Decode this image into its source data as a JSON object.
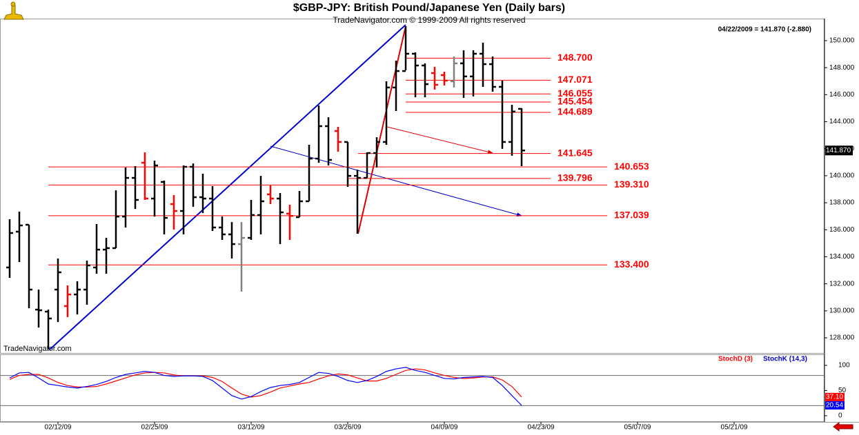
{
  "header_quote": "04/22/2009 = 141.870 (-2.880)",
  "watermark": "TradeNavigator.com",
  "chart_data": [
    {
      "type": "ohlc",
      "title": "$GBP-JPY:  British Pound/Japanese Yen  (Daily bars)",
      "subtitle": "TradeNavigator.com © 1999-2009 All rights reserved",
      "x": [
        0,
        1,
        2,
        3,
        4,
        5,
        6,
        7,
        8,
        9,
        10,
        11,
        12,
        13,
        14,
        15,
        16,
        17,
        18,
        19,
        20,
        21,
        22,
        23,
        24,
        25,
        26,
        27,
        28,
        29,
        30,
        31,
        32,
        33,
        34,
        35,
        36,
        37,
        38,
        39,
        40,
        41,
        42,
        43,
        44,
        45,
        46,
        47,
        48,
        49,
        50,
        51,
        52,
        53
      ],
      "open": [
        133.21,
        135.86,
        136.37,
        130.09,
        129.94,
        131.57,
        130.35,
        131.21,
        131.57,
        133.21,
        134.53,
        134.64,
        136.98,
        139.84,
        140.96,
        138.31,
        139.54,
        137.9,
        137.39,
        140.66,
        138.41,
        138.31,
        136.17,
        135.66,
        134.94,
        135.4,
        137.09,
        138.62,
        138.31,
        137.19,
        136.93,
        138.11,
        141.27,
        143.67,
        143.31,
        142.5,
        139.99,
        139.84,
        141.68,
        142.5,
        146.53,
        147.75,
        149.03,
        148.16,
        147.6,
        147.45,
        146.99,
        148.32,
        147.35,
        149.03,
        148.26,
        146.58,
        142.5,
        144.95
      ],
      "high": [
        136.78,
        137.34,
        136.37,
        131.57,
        130.09,
        133.87,
        131.88,
        132.19,
        133.72,
        136.42,
        135.4,
        138.92,
        140.61,
        140.71,
        141.73,
        141.12,
        139.64,
        138.57,
        140.76,
        140.91,
        140.15,
        139.23,
        136.98,
        136.57,
        136.57,
        138.21,
        139.99,
        139.33,
        138.72,
        137.85,
        138.87,
        142.29,
        145.2,
        144.33,
        143.62,
        142.5,
        140.45,
        141.73,
        142.85,
        146.99,
        148.52,
        151.07,
        149.13,
        148.32,
        148.06,
        147.7,
        148.83,
        149.29,
        149.29,
        149.85,
        148.83,
        147.04,
        145.25,
        145.0
      ],
      "low": [
        132.44,
        133.61,
        130.19,
        128.76,
        127.13,
        129.17,
        129.53,
        129.73,
        130.45,
        132.75,
        132.75,
        134.64,
        136.17,
        137.54,
        138.21,
        136.98,
        135.66,
        136.01,
        135.66,
        137.7,
        137.24,
        135.91,
        135.25,
        133.87,
        131.42,
        135.25,
        135.66,
        137.9,
        134.94,
        135.25,
        136.93,
        138.11,
        140.96,
        140.76,
        141.78,
        139.18,
        135.71,
        139.84,
        140.61,
        142.29,
        144.79,
        147.81,
        145.81,
        145.81,
        146.38,
        146.68,
        146.53,
        145.76,
        145.87,
        146.58,
        146.22,
        141.99,
        141.48,
        140.71
      ],
      "close": [
        135.76,
        136.32,
        131.57,
        130.04,
        129.43,
        132.85,
        131.21,
        131.57,
        133.36,
        134.53,
        134.64,
        136.98,
        139.84,
        138.21,
        138.31,
        140.76,
        136.88,
        137.39,
        140.66,
        138.41,
        138.31,
        136.17,
        135.66,
        134.94,
        135.4,
        137.09,
        138.11,
        138.31,
        137.29,
        137.03,
        138.11,
        141.27,
        143.67,
        141.17,
        142.5,
        139.99,
        139.84,
        141.68,
        142.5,
        146.53,
        147.75,
        149.03,
        148.16,
        146.78,
        146.73,
        147.04,
        148.32,
        147.35,
        149.03,
        148.26,
        146.58,
        142.5,
        144.75,
        141.87
      ],
      "colors": [
        "#000000",
        "#000000",
        "#000000",
        "#000000",
        "#000000",
        "#000000",
        "#ff0000",
        "#000000",
        "#000000",
        "#000000",
        "#000000",
        "#000000",
        "#000000",
        "#000000",
        "#ff0000",
        "#000000",
        "#000000",
        "#ff0000",
        "#000000",
        "#000000",
        "#000000",
        "#000000",
        "#000000",
        "#000000",
        "#808080",
        "#000000",
        "#000000",
        "#ff0000",
        "#000000",
        "#ff0000",
        "#000000",
        "#000000",
        "#000000",
        "#000000",
        "#ff0000",
        "#000000",
        "#000000",
        "#000000",
        "#000000",
        "#000000",
        "#000000",
        "#000000",
        "#000000",
        "#000000",
        "#ff0000",
        "#ff0000",
        "#808080",
        "#000000",
        "#000000",
        "#000000",
        "#000000",
        "#000000",
        "#000000",
        "#000000"
      ],
      "last_label": "141.870",
      "xlim": [
        0,
        84
      ],
      "xticks": [
        {
          "value": 5,
          "label": "02/12/09"
        },
        {
          "value": 15,
          "label": "02/25/09"
        },
        {
          "value": 25,
          "label": "03/12/09"
        },
        {
          "value": 35,
          "label": "03/26/09"
        },
        {
          "value": 45,
          "label": "04/09/09"
        },
        {
          "value": 55,
          "label": "04/23/09"
        },
        {
          "value": 65,
          "label": "05/07/09"
        },
        {
          "value": 75,
          "label": "05/21/09"
        }
      ],
      "ylim": [
        126.88,
        151.58
      ],
      "yticks": [
        {
          "value": 128,
          "label": "128.000"
        },
        {
          "value": 130,
          "label": "130.000"
        },
        {
          "value": 132,
          "label": "132.000"
        },
        {
          "value": 134,
          "label": "134.000"
        },
        {
          "value": 136,
          "label": "136.000"
        },
        {
          "value": 138,
          "label": "138.000"
        },
        {
          "value": 140,
          "label": "140.000"
        },
        {
          "value": 142,
          "label": "142.000"
        },
        {
          "value": 144,
          "label": "144.000"
        },
        {
          "value": 146,
          "label": "146.000"
        },
        {
          "value": 148,
          "label": "148.000"
        },
        {
          "value": 150,
          "label": "150.000"
        }
      ],
      "levels": [
        {
          "value": 148.7,
          "label": "148.700"
        },
        {
          "value": 147.071,
          "label": "147.071"
        },
        {
          "value": 146.055,
          "label": "146.055"
        },
        {
          "value": 145.454,
          "label": "145.454"
        },
        {
          "value": 144.689,
          "label": "144.689"
        },
        {
          "value": 141.645,
          "label": "141.645"
        },
        {
          "value": 140.653,
          "label": "140.653"
        },
        {
          "value": 139.796,
          "label": "139.796"
        },
        {
          "value": 139.31,
          "label": "139.310"
        },
        {
          "value": 137.039,
          "label": "137.039"
        },
        {
          "value": 133.4,
          "label": "133.400"
        }
      ],
      "level_color": "#ff0000"
    },
    {
      "type": "line",
      "series": [
        {
          "name": "StochD (3)",
          "color": "#ff0000",
          "last_label": "37.10",
          "values": [
            72,
            80,
            82,
            82,
            75,
            66,
            60,
            57,
            57,
            58,
            63,
            69,
            75,
            81,
            85,
            86,
            85,
            81,
            79,
            79,
            79,
            76,
            68,
            55,
            43,
            37,
            40,
            47,
            55,
            59,
            63,
            66,
            73,
            79,
            83,
            81,
            75,
            69,
            69,
            74,
            82,
            90,
            93,
            91,
            85,
            80,
            76,
            74,
            75,
            77,
            77,
            71,
            58,
            37.1
          ]
        },
        {
          "name": "StochK (14,3)",
          "color": "#0000ff",
          "last_label": "20.54",
          "values": [
            75,
            85,
            86,
            75,
            63,
            60,
            57,
            55,
            58,
            62,
            68,
            76,
            82,
            85,
            88,
            86,
            80,
            78,
            79,
            79,
            78,
            70,
            55,
            40,
            33,
            38,
            48,
            56,
            60,
            62,
            66,
            76,
            86,
            84,
            78,
            70,
            66,
            70,
            78,
            88,
            93,
            96,
            90,
            86,
            80,
            74,
            73,
            76,
            77,
            78,
            76,
            60,
            40,
            20.54
          ]
        }
      ],
      "ylim": [
        -12.3,
        120.5
      ],
      "yticks": [
        0,
        50,
        100
      ],
      "ref_lines": [
        20,
        80
      ]
    }
  ]
}
